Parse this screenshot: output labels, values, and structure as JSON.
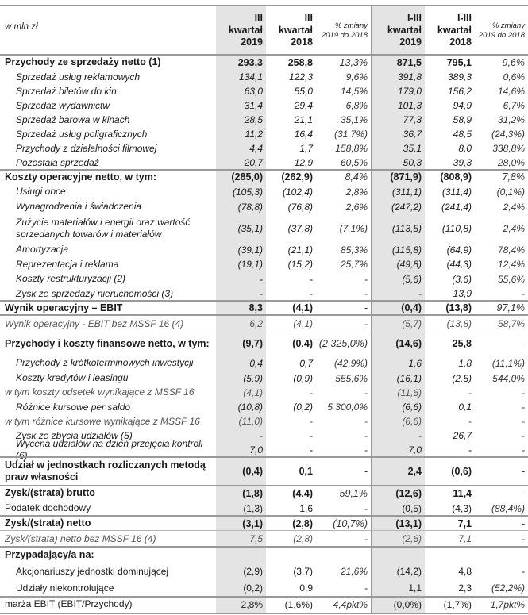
{
  "header": {
    "unit": "w mln zł",
    "columns": [
      [
        "III",
        "kwartał",
        "2019"
      ],
      [
        "III",
        "kwartał",
        "2018"
      ],
      [
        "% zmiany",
        "2019 do 2018"
      ],
      [
        "I-III",
        "kwartał",
        "2019"
      ],
      [
        "I-III",
        "kwartał",
        "2018"
      ],
      [
        "% zmiany",
        "2019 do 2018"
      ]
    ]
  },
  "rows": [
    {
      "label": "Przychody ze sprzedaży netto (1)",
      "style": "bold",
      "values": [
        "293,3",
        "258,8",
        "13,3%",
        "871,5",
        "795,1",
        "9,6%"
      ]
    },
    {
      "label": "Sprzedaż usług reklamowych",
      "style": "italic indent",
      "values": [
        "134,1",
        "122,3",
        "9,6%",
        "391,8",
        "389,3",
        "0,6%"
      ]
    },
    {
      "label": "Sprzedaż biletów do kin",
      "style": "italic indent",
      "values": [
        "63,0",
        "55,0",
        "14,5%",
        "179,0",
        "156,2",
        "14,6%"
      ]
    },
    {
      "label": "Sprzedaż wydawnictw",
      "style": "italic indent",
      "values": [
        "31,4",
        "29,4",
        "6,8%",
        "101,3",
        "94,9",
        "6,7%"
      ]
    },
    {
      "label": "Sprzedaż barowa w kinach",
      "style": "italic indent",
      "values": [
        "28,5",
        "21,1",
        "35,1%",
        "77,3",
        "58,9",
        "31,2%"
      ]
    },
    {
      "label": "Sprzedaż usług poligraficznych",
      "style": "italic indent",
      "values": [
        "11,2",
        "16,4",
        "(31,7%)",
        "36,7",
        "48,5",
        "(24,3%)"
      ]
    },
    {
      "label": "Przychody z działalności filmowej",
      "style": "italic indent",
      "values": [
        "4,4",
        "1,7",
        "158,8%",
        "35,1",
        "8,0",
        "338,8%"
      ]
    },
    {
      "label": "Pozostała sprzedaż",
      "style": "italic indent",
      "values": [
        "20,7",
        "12,9",
        "60,5%",
        "50,3",
        "39,3",
        "28,0%"
      ]
    },
    {
      "label": "Koszty operacyjne netto, w tym:",
      "style": "bold",
      "values": [
        "(285,0)",
        "(262,9)",
        "8,4%",
        "(871,9)",
        "(808,9)",
        "7,8%"
      ]
    },
    {
      "label": "Usługi obce",
      "style": "italic indent",
      "values": [
        "(105,3)",
        "(102,4)",
        "2,8%",
        "(311,1)",
        "(311,4)",
        "(0,1%)"
      ]
    },
    {
      "label": "Wynagrodzenia i świadczenia",
      "style": "italic indent",
      "values": [
        "(78,8)",
        "(76,8)",
        "2,6%",
        "(247,2)",
        "(241,4)",
        "2,4%"
      ]
    },
    {
      "label": "Zużycie materiałów i energii oraz wartość sprzedanych towarów i materiałów",
      "style": "italic indent",
      "values": [
        "(35,1)",
        "(37,8)",
        "(7,1%)",
        "(113,5)",
        "(110,8)",
        "2,4%"
      ]
    },
    {
      "label": "Amortyzacja",
      "style": "italic indent",
      "values": [
        "(39,1)",
        "(21,1)",
        "85,3%",
        "(115,8)",
        "(64,9)",
        "78,4%"
      ]
    },
    {
      "label": "Reprezentacja i reklama",
      "style": "italic indent",
      "values": [
        "(19,1)",
        "(15,2)",
        "25,7%",
        "(49,8)",
        "(44,3)",
        "12,4%"
      ]
    },
    {
      "label": "Koszty restrukturyzacji (2)",
      "style": "italic indent",
      "values": [
        "-",
        "-",
        "-",
        "(5,6)",
        "(3,6)",
        "55,6%"
      ]
    },
    {
      "label": "Zysk ze sprzedaży nieruchomości (3)",
      "style": "italic indent",
      "values": [
        "-",
        "-",
        "-",
        "-",
        "13,9",
        "-"
      ]
    },
    {
      "label": "Wynik operacyjny – EBIT",
      "style": "bold",
      "values": [
        "8,3",
        "(4,1)",
        "-",
        "(0,4)",
        "(13,8)",
        "97,1%"
      ]
    },
    {
      "label": "Wynik operacyjny - EBIT bez MSSF 16 (4)",
      "style": "italic gray",
      "values": [
        "6,2",
        "(4,1)",
        "-",
        "(5,7)",
        "(13,8)",
        "58,7%"
      ]
    },
    {
      "label": "Przychody i koszty finansowe netto, w tym:",
      "style": "bold",
      "values": [
        "(9,7)",
        "(0,4)",
        "(2 325,0%)",
        "(14,6)",
        "25,8",
        "-"
      ]
    },
    {
      "label": "Przychody z krótkoterminowych inwestycji",
      "style": "italic indent",
      "values": [
        "0,4",
        "0,7",
        "(42,9%)",
        "1,6",
        "1,8",
        "(11,1%)"
      ]
    },
    {
      "label": "Koszty kredytów i leasingu",
      "style": "italic indent",
      "values": [
        "(5,9)",
        "(0,9)",
        "555,6%",
        "(16,1)",
        "(2,5)",
        "544,0%"
      ]
    },
    {
      "label": "w tym koszty odsetek wynikające z MSSF 16",
      "style": "italic gray",
      "values": [
        "(4,1)",
        "-",
        "-",
        "(11,6)",
        "-",
        "-"
      ]
    },
    {
      "label": "Różnice kursowe per saldo",
      "style": "italic indent",
      "values": [
        "(10,8)",
        "(0,2)",
        "5 300,0%",
        "(6,6)",
        "0,1",
        "-"
      ]
    },
    {
      "label": "w tym różnice kursowe wynikające z MSSF 16",
      "style": "italic gray",
      "values": [
        "(11,0)",
        "-",
        "-",
        "(6,6)",
        "-",
        "-"
      ]
    },
    {
      "label": "Zysk ze zbycia udziałów (5)",
      "style": "italic indent",
      "values": [
        "-",
        "-",
        "-",
        "-",
        "26,7",
        "-"
      ]
    },
    {
      "label": "Wycena udziałów na dzień przejęcia kontroli (6)",
      "style": "italic indent",
      "values": [
        "7,0",
        "-",
        "-",
        "7,0",
        "-",
        "-"
      ]
    },
    {
      "label": "Udział w jednostkach rozliczanych metodą praw własności",
      "style": "bold",
      "values": [
        "(0,4)",
        "0,1",
        "-",
        "2,4",
        "(0,6)",
        "-"
      ]
    },
    {
      "label": "Zysk/(strata) brutto",
      "style": "bold",
      "values": [
        "(1,8)",
        "(4,4)",
        "59,1%",
        "(12,6)",
        "11,4",
        "-"
      ]
    },
    {
      "label": "Podatek dochodowy",
      "style": "",
      "values": [
        "(1,3)",
        "1,6",
        "-",
        "(0,5)",
        "(4,3)",
        "(88,4%)"
      ]
    },
    {
      "label": "Zysk/(strata) netto",
      "style": "bold",
      "values": [
        "(3,1)",
        "(2,8)",
        "(10,7%)",
        "(13,1)",
        "7,1",
        "-"
      ]
    },
    {
      "label": "Zysk/(strata) netto bez MSSF 16 (4)",
      "style": "italic gray",
      "values": [
        "7,5",
        "(2,8)",
        "-",
        "(2,6)",
        "7,1",
        "-"
      ]
    },
    {
      "label": "Przypadający/a na:",
      "style": "bold",
      "values": [
        "",
        "",
        "",
        "",
        "",
        ""
      ]
    },
    {
      "label": "Akcjonariuszy jednostki dominującej",
      "style": "indent",
      "values": [
        "(2,9)",
        "(3,7)",
        "21,6%",
        "(14,2)",
        "4,8",
        "-"
      ]
    },
    {
      "label": "Udziały niekontrolujące",
      "style": "indent",
      "values": [
        "(0,2)",
        "0,9",
        "-",
        "1,1",
        "2,3",
        "(52,2%)"
      ]
    },
    {
      "label": "marża EBIT (EBIT/Przychody)",
      "style": "",
      "values": [
        "2,8%",
        "(1,6%)",
        "4,4pkt%",
        "(0,0%)",
        "(1,7%)",
        "1,7pkt%"
      ]
    }
  ]
}
